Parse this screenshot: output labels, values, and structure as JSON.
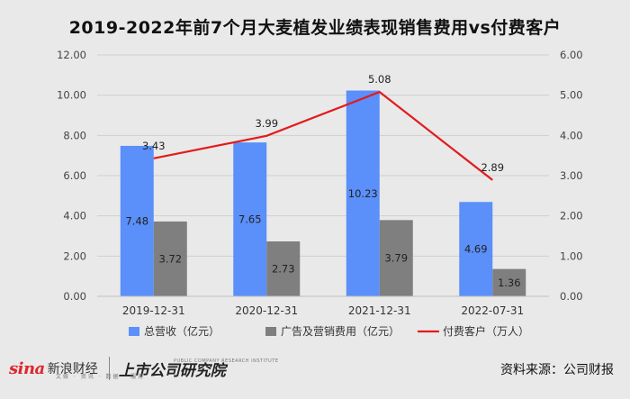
{
  "chart_data": {
    "type": "bar",
    "title": "2019-2022年前7个月大麦植发业绩表现销售费用vs付费客户",
    "categories": [
      "2019-12-31",
      "2020-12-31",
      "2021-12-31",
      "2022-07-31"
    ],
    "series": [
      {
        "name": "总营收（亿元）",
        "type": "bar",
        "axis": "left",
        "color": "#5b8ff9",
        "values": [
          7.48,
          7.65,
          10.23,
          4.69
        ]
      },
      {
        "name": "广告及营销费用（亿元）",
        "type": "bar",
        "axis": "left",
        "color": "#7f7f7f",
        "values": [
          3.72,
          2.73,
          3.79,
          1.36
        ]
      },
      {
        "name": "付费客户（万人）",
        "type": "line",
        "axis": "right",
        "color": "#e31a1c",
        "values": [
          3.43,
          3.99,
          5.08,
          2.89
        ]
      }
    ],
    "ylim_left": [
      0,
      12
    ],
    "ylim_right": [
      0,
      6
    ],
    "yticks_left": [
      "0.00",
      "2.00",
      "4.00",
      "6.00",
      "8.00",
      "10.00",
      "12.00"
    ],
    "yticks_right": [
      "0.00",
      "1.00",
      "2.00",
      "3.00",
      "4.00",
      "5.00",
      "6.00"
    ],
    "grid": true,
    "legend_position": "bottom"
  },
  "footer": {
    "sina_logo": "sina",
    "sina_cn": "新浪财经",
    "sina_sub": "文娱 · 资讯 · 数据 · 服务",
    "institute_logo": "上市公司研究院",
    "institute_sub": "PUBLIC COMPANY RESEARCH INSTITUTE",
    "source": "资料来源：公司财报"
  }
}
